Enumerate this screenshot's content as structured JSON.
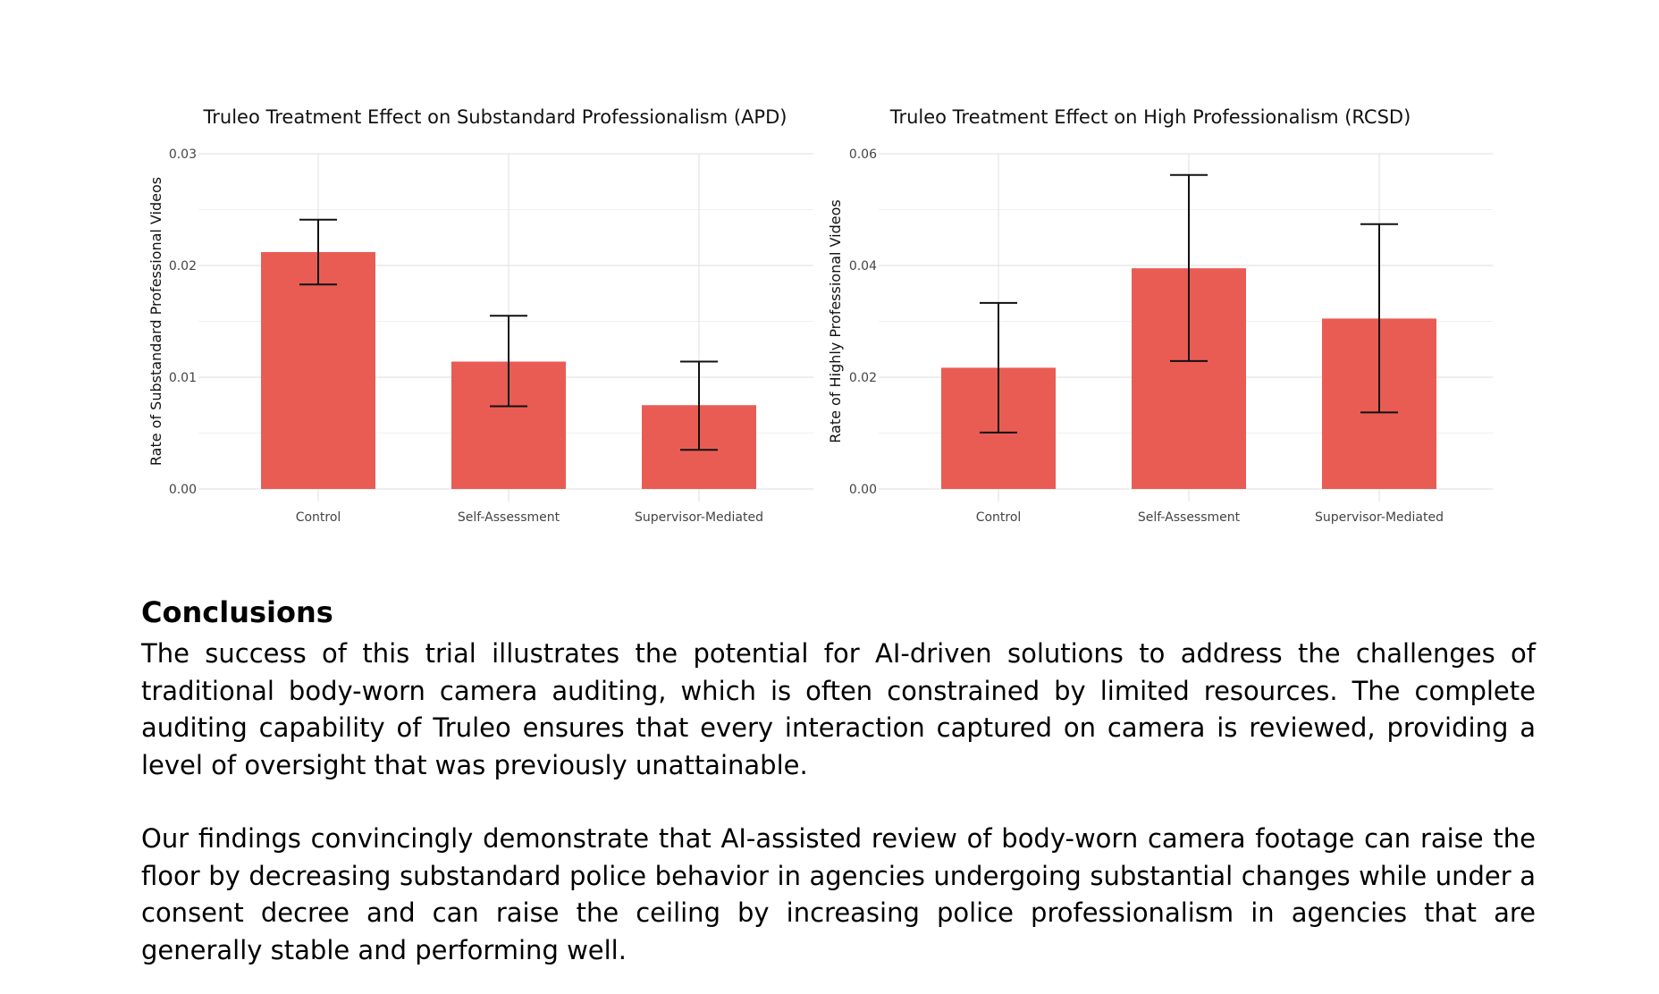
{
  "chart_data": [
    {
      "type": "bar",
      "title": "Truleo Treatment Effect on Substandard Professionalism (APD)",
      "xlabel": "",
      "ylabel": "Rate of Substandard Professional Videos",
      "categories": [
        "Control",
        "Self-Assessment",
        "Supervisor-Mediated"
      ],
      "values": [
        0.0212,
        0.0114,
        0.0075
      ],
      "error_low": [
        0.0183,
        0.0074,
        0.0035
      ],
      "error_high": [
        0.0241,
        0.0155,
        0.0114
      ],
      "ylim": [
        0,
        0.03
      ],
      "yticks": [
        0.0,
        0.01,
        0.02,
        0.03
      ],
      "ytick_labels": [
        "0.00",
        "0.01",
        "0.02",
        "0.03"
      ],
      "bar_color": "#e8534b",
      "grid": true
    },
    {
      "type": "bar",
      "title": "Truleo Treatment Effect on High Professionalism (RCSD)",
      "xlabel": "",
      "ylabel": "Rate of Highly Professional Videos",
      "categories": [
        "Control",
        "Self-Assessment",
        "Supervisor-Mediated"
      ],
      "values": [
        0.0217,
        0.0395,
        0.0305
      ],
      "error_low": [
        0.0101,
        0.0229,
        0.0137
      ],
      "error_high": [
        0.0333,
        0.0562,
        0.0474
      ],
      "ylim": [
        0,
        0.06
      ],
      "yticks": [
        0.0,
        0.02,
        0.04,
        0.06
      ],
      "ytick_labels": [
        "0.00",
        "0.02",
        "0.04",
        "0.06"
      ],
      "bar_color": "#e8534b",
      "grid": true
    }
  ],
  "conclusions": {
    "heading": "Conclusions",
    "paragraphs": [
      "The success of this trial illustrates the potential for AI-driven solutions to address the challenges of traditional body-worn camera auditing, which is often constrained by limited resources. The complete auditing capability of Truleo ensures that every interaction captured on camera is reviewed, providing a level of oversight that was previously unattainable.",
      "Our findings convincingly demonstrate that AI-assisted review of body-worn camera footage can raise the floor by decreasing substandard police behavior in agencies undergoing substantial changes while under a consent decree and can raise the ceiling by increasing police professionalism in agencies that are generally stable and performing well."
    ]
  }
}
